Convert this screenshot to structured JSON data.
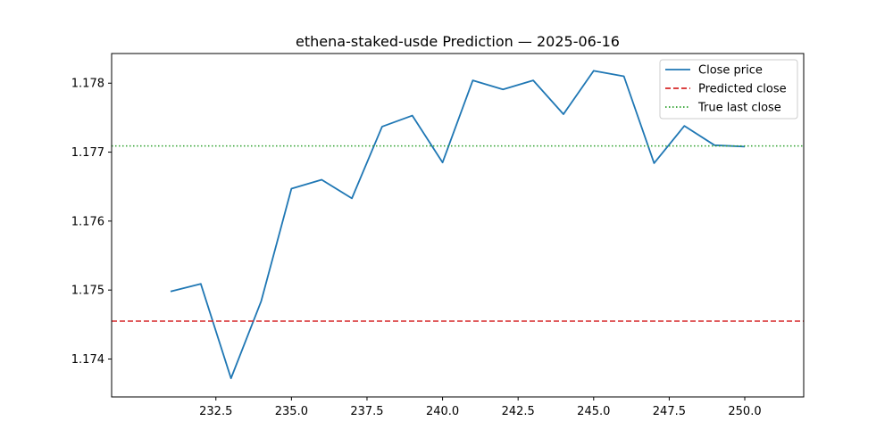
{
  "chart_data": {
    "type": "line",
    "title": "ethena-staked-usde Prediction — 2025-06-16",
    "xlabel": "",
    "ylabel": "",
    "xlim": [
      229.05,
      251.95
    ],
    "ylim": [
      1.17345,
      1.17843
    ],
    "x_ticks": [
      232.5,
      235.0,
      237.5,
      240.0,
      242.5,
      245.0,
      247.5,
      250.0
    ],
    "x_tick_labels": [
      "232.5",
      "235.0",
      "237.5",
      "240.0",
      "242.5",
      "245.0",
      "247.5",
      "250.0"
    ],
    "y_ticks": [
      1.174,
      1.175,
      1.176,
      1.177,
      1.178
    ],
    "y_tick_labels": [
      "1.174",
      "1.175",
      "1.176",
      "1.177",
      "1.178"
    ],
    "grid": false,
    "legend_position": "top-right",
    "series": [
      {
        "name": "Close price",
        "style": "solid",
        "color": "#1f77b4",
        "x": [
          231,
          232,
          233,
          234,
          235,
          236,
          237,
          238,
          239,
          240,
          241,
          242,
          243,
          244,
          245,
          246,
          247,
          248,
          249,
          250
        ],
        "values": [
          1.17498,
          1.17509,
          1.17372,
          1.17484,
          1.17647,
          1.1766,
          1.17633,
          1.17737,
          1.17753,
          1.17685,
          1.17804,
          1.17791,
          1.17804,
          1.17755,
          1.17818,
          1.1781,
          1.17684,
          1.17738,
          1.1771,
          1.17708
        ]
      },
      {
        "name": "Predicted close",
        "style": "dashed",
        "color": "#d62728",
        "horizontal_line": 1.17455
      },
      {
        "name": "True last close",
        "style": "dotted",
        "color": "#2ca02c",
        "horizontal_line": 1.17709
      }
    ]
  }
}
